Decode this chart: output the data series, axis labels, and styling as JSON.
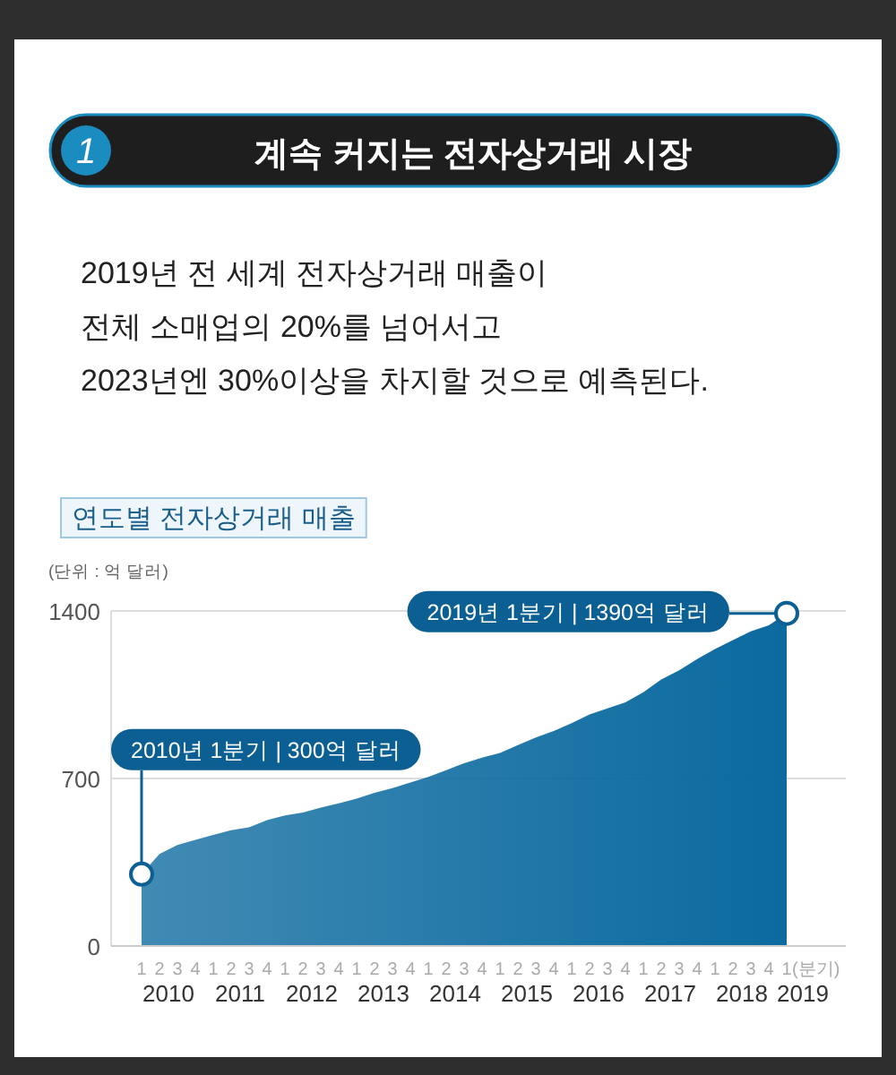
{
  "chart_data": {
    "type": "area",
    "title": "계속 커지는 전자상거래 시장",
    "subtitle": "2019년 전 세계 전자상거래 매출이\n전체 소매업의 20%를 넘어서고\n2023년엔 30%이상을 차지할 것으로 예측된다.",
    "ylabel": "(단위 : 억 달러)",
    "annotations": [
      "1",
      "연도별 전자상거래 매출",
      {
        "text": "2010년 1분기 | 300억 달러",
        "x": "1",
        "y": 300
      },
      "2019년 1분기 | 1390억 달러",
      "2010",
      "2011",
      "2012",
      "2013",
      "2014",
      "2015",
      "2016",
      "2017",
      "2018",
      "2019"
    ],
    "categories": [
      "1",
      "2",
      "3",
      "4",
      "1",
      "2",
      "3",
      "4",
      "1",
      "2",
      "3",
      "4",
      "1",
      "2",
      "3",
      "4",
      "1",
      "2",
      "3",
      "4",
      "1",
      "2",
      "3",
      "4",
      "1",
      "2",
      "3",
      "4",
      "1",
      "2",
      "3",
      "4",
      "1",
      "2",
      "3",
      "4",
      "1"
    ],
    "xlabel": "(분기)",
    "series": [
      {
        "color": "#0b6a9f",
        "values": [
          300,
          385,
          422,
          444,
          464,
          484,
          496,
          526,
          546,
          558,
          578,
          596,
          616,
          640,
          660,
          683,
          707,
          735,
          764,
          787,
          807,
          839,
          871,
          898,
          931,
          968,
          993,
          1018,
          1060,
          1114,
          1152,
          1199,
          1241,
          1278,
          1315,
          1340,
          1390
        ]
      }
    ],
    "ylim": [
      0,
      1400
    ],
    "yticks": [
      0,
      700,
      1400
    ],
    "grid": "y"
  }
}
